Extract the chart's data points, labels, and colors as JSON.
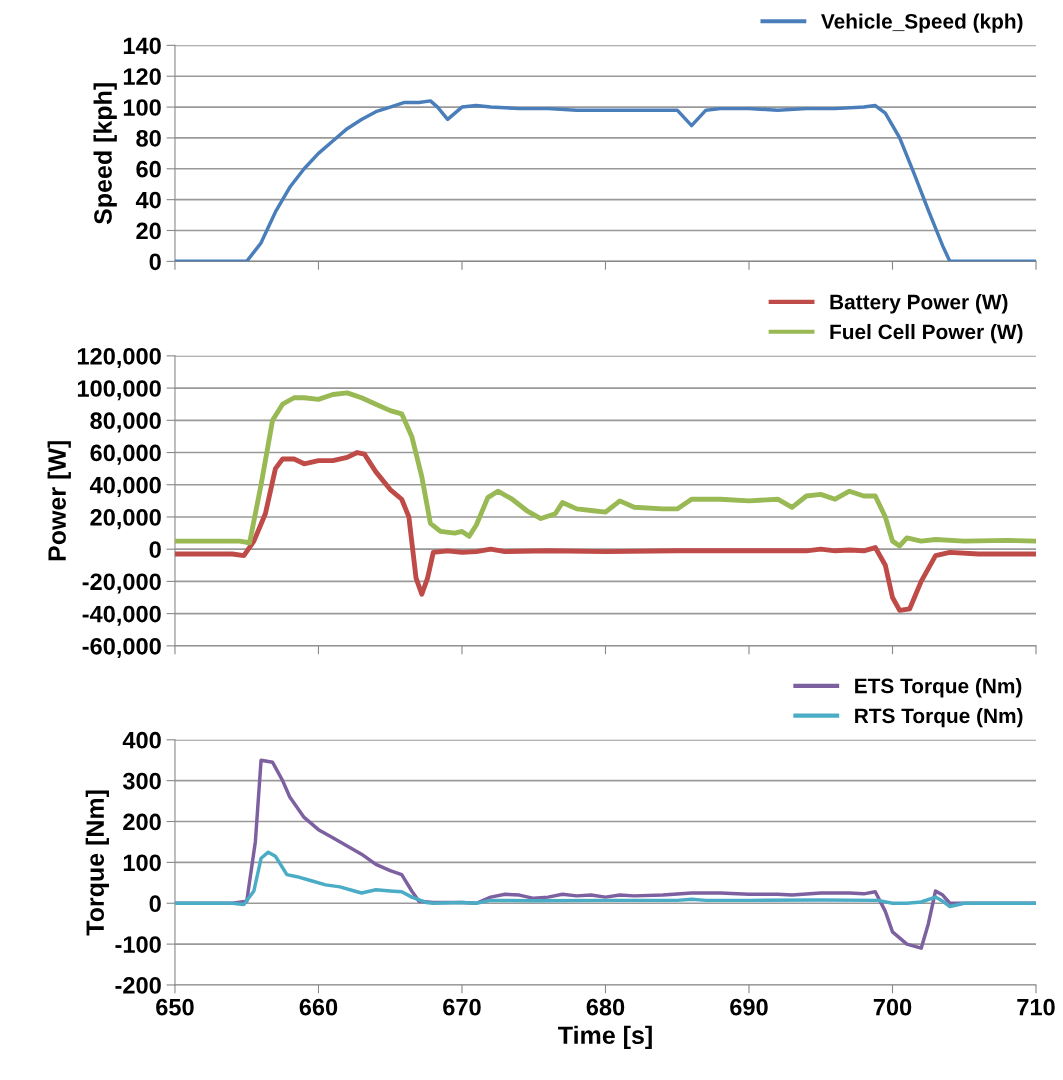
{
  "chart_data": [
    {
      "type": "line",
      "ylabel": "Speed [kph]",
      "xlim": [
        650,
        710
      ],
      "xticks": [
        650,
        660,
        670,
        680,
        690,
        700,
        710
      ],
      "ylim": [
        0,
        140
      ],
      "yticks": [
        0,
        20,
        40,
        60,
        80,
        100,
        120,
        140
      ],
      "grid": "y",
      "legend": "top right",
      "tick_labels": "y",
      "marker": "none",
      "line_style": "solid",
      "series": [
        {
          "name": "Vehicle_Speed (kph)",
          "color": "#4a7ebb",
          "x": [
            650,
            654,
            655,
            656,
            657,
            658,
            659,
            660,
            661,
            662,
            663,
            664,
            665,
            666,
            667,
            667.8,
            668.3,
            669,
            670,
            671,
            672,
            674,
            676,
            678,
            680,
            682,
            684,
            685,
            686,
            687,
            688,
            690,
            692,
            694,
            696,
            698,
            698.8,
            699.5,
            700.5,
            701.5,
            702.5,
            703.5,
            704,
            706,
            710
          ],
          "values": [
            0,
            0,
            0,
            12,
            32,
            48,
            60,
            70,
            78,
            86,
            92,
            97,
            100,
            103,
            103,
            104,
            100,
            92,
            100,
            101,
            100,
            99,
            99,
            98,
            98,
            98,
            98,
            98,
            88,
            98,
            99,
            99,
            98,
            99,
            99,
            100,
            101,
            96,
            80,
            57,
            33,
            10,
            0,
            0,
            0
          ]
        }
      ]
    },
    {
      "type": "line",
      "ylabel": "Power [W]",
      "xlim": [
        650,
        710
      ],
      "xticks": [
        650,
        660,
        670,
        680,
        690,
        700,
        710
      ],
      "ylim": [
        -60000,
        120000
      ],
      "yticks": [
        {
          "value": -60000,
          "label": "-60,000"
        },
        {
          "value": -40000,
          "label": "-40,000"
        },
        {
          "value": -20000,
          "label": "-20,000"
        },
        0,
        {
          "value": 20000,
          "label": "20,000"
        },
        {
          "value": 40000,
          "label": "40,000"
        },
        {
          "value": 60000,
          "label": "60,000"
        },
        {
          "value": 80000,
          "label": "80,000"
        },
        {
          "value": 100000,
          "label": "100,000"
        },
        {
          "value": 120000,
          "label": "120,000"
        }
      ],
      "grid": "y",
      "legend": "top right",
      "tick_labels": "y",
      "marker": "none",
      "line_style": "solid",
      "series": [
        {
          "name": "Battery Power (W)",
          "color": "#be4b48",
          "x": [
            650,
            654,
            654.8,
            655.5,
            656.3,
            657,
            657.5,
            658.3,
            659,
            660,
            661,
            662,
            662.7,
            663.2,
            664,
            665,
            665.8,
            666.3,
            666.8,
            667.2,
            667.6,
            668,
            669,
            670,
            671,
            672,
            673,
            676,
            680,
            685,
            690,
            694,
            695,
            696,
            697,
            698,
            698.8,
            699.5,
            700,
            700.5,
            701.2,
            702,
            703,
            704,
            706,
            710
          ],
          "values": [
            -3000,
            -3000,
            -4000,
            5000,
            22000,
            50000,
            56000,
            56000,
            53000,
            55000,
            55000,
            57000,
            60000,
            59000,
            48000,
            37000,
            31000,
            20000,
            -18000,
            -28000,
            -18000,
            -2000,
            -1000,
            -2000,
            -1500,
            0,
            -1500,
            -1000,
            -1500,
            -1000,
            -1000,
            -1000,
            0,
            -1000,
            -500,
            -1000,
            1000,
            -10000,
            -30000,
            -38000,
            -37000,
            -20000,
            -4000,
            -2000,
            -3000,
            -3000
          ]
        },
        {
          "name": "Fuel Cell Power (W)",
          "color": "#98b954",
          "x": [
            650,
            654,
            654.5,
            655.2,
            656,
            656.8,
            657.5,
            658.3,
            659,
            660,
            661,
            662,
            663,
            664,
            665,
            665.8,
            666.5,
            667.2,
            667.8,
            668.5,
            669.5,
            670,
            670.5,
            671,
            671.8,
            672.5,
            673.5,
            674.5,
            675.5,
            676.5,
            677,
            678,
            679,
            680,
            681,
            682,
            684,
            685,
            686,
            688,
            690,
            692,
            693,
            694,
            695,
            696,
            697,
            698,
            698.8,
            699.5,
            700,
            700.5,
            701,
            702,
            703,
            705,
            708,
            710
          ],
          "values": [
            5000,
            5000,
            5000,
            4000,
            40000,
            80000,
            90000,
            94000,
            94000,
            93000,
            96000,
            97000,
            94000,
            90000,
            86000,
            84000,
            70000,
            45000,
            16000,
            11000,
            10000,
            11000,
            8000,
            15000,
            32000,
            36000,
            31000,
            24000,
            19000,
            22000,
            29000,
            25000,
            24000,
            23000,
            30000,
            26000,
            25000,
            25000,
            31000,
            31000,
            30000,
            31000,
            26000,
            33000,
            34000,
            31000,
            36000,
            33000,
            33000,
            20000,
            5000,
            2000,
            7000,
            5000,
            6000,
            5000,
            5500,
            5000
          ]
        }
      ]
    },
    {
      "type": "line",
      "ylabel": "Torque [Nm]",
      "xlabel": "Time [s]",
      "xlim": [
        650,
        710
      ],
      "xticks": [
        650,
        660,
        670,
        680,
        690,
        700,
        710
      ],
      "ylim": [
        -200,
        400
      ],
      "yticks": [
        -200,
        -100,
        0,
        100,
        200,
        300,
        400
      ],
      "grid": "y",
      "legend": "top right",
      "marker": "none",
      "line_style": "solid",
      "series": [
        {
          "name": "ETS Torque (Nm)",
          "color": "#7d60a0",
          "x": [
            650,
            654,
            655,
            655.6,
            656,
            656.8,
            657.5,
            658,
            659,
            660,
            661,
            662,
            663,
            664,
            665,
            665.8,
            666.5,
            667,
            668,
            670,
            671,
            672,
            673,
            674,
            675,
            676,
            677,
            678,
            679,
            680,
            681,
            682,
            684,
            686,
            688,
            690,
            692,
            693,
            695,
            697,
            698,
            698.8,
            699.5,
            700,
            701,
            702,
            702.5,
            703,
            703.5,
            704,
            706,
            710
          ],
          "values": [
            0,
            0,
            5,
            150,
            350,
            345,
            300,
            260,
            210,
            180,
            160,
            140,
            120,
            95,
            80,
            70,
            30,
            5,
            2,
            2,
            0,
            15,
            22,
            20,
            12,
            15,
            22,
            18,
            20,
            15,
            20,
            18,
            20,
            25,
            25,
            22,
            22,
            20,
            25,
            25,
            23,
            28,
            -20,
            -70,
            -100,
            -110,
            -50,
            30,
            20,
            0,
            0,
            0
          ]
        },
        {
          "name": "RTS Torque (Nm)",
          "color": "#4bacc6",
          "x": [
            650,
            654,
            654.8,
            655.5,
            656,
            656.5,
            657,
            657.8,
            658.5,
            659.5,
            660.5,
            661.5,
            662.5,
            663,
            664,
            665,
            665.8,
            666.5,
            667.5,
            668,
            670,
            671,
            672,
            675,
            680,
            685,
            686,
            687,
            690,
            695,
            699,
            700,
            701,
            702,
            703,
            703.5,
            704,
            705,
            710
          ],
          "values": [
            0,
            0,
            -3,
            30,
            110,
            125,
            115,
            70,
            65,
            55,
            45,
            40,
            30,
            25,
            33,
            30,
            28,
            15,
            2,
            0,
            2,
            0,
            7,
            6,
            7,
            7,
            10,
            7,
            7,
            8,
            7,
            0,
            0,
            3,
            15,
            5,
            -8,
            0,
            0
          ]
        }
      ]
    }
  ]
}
